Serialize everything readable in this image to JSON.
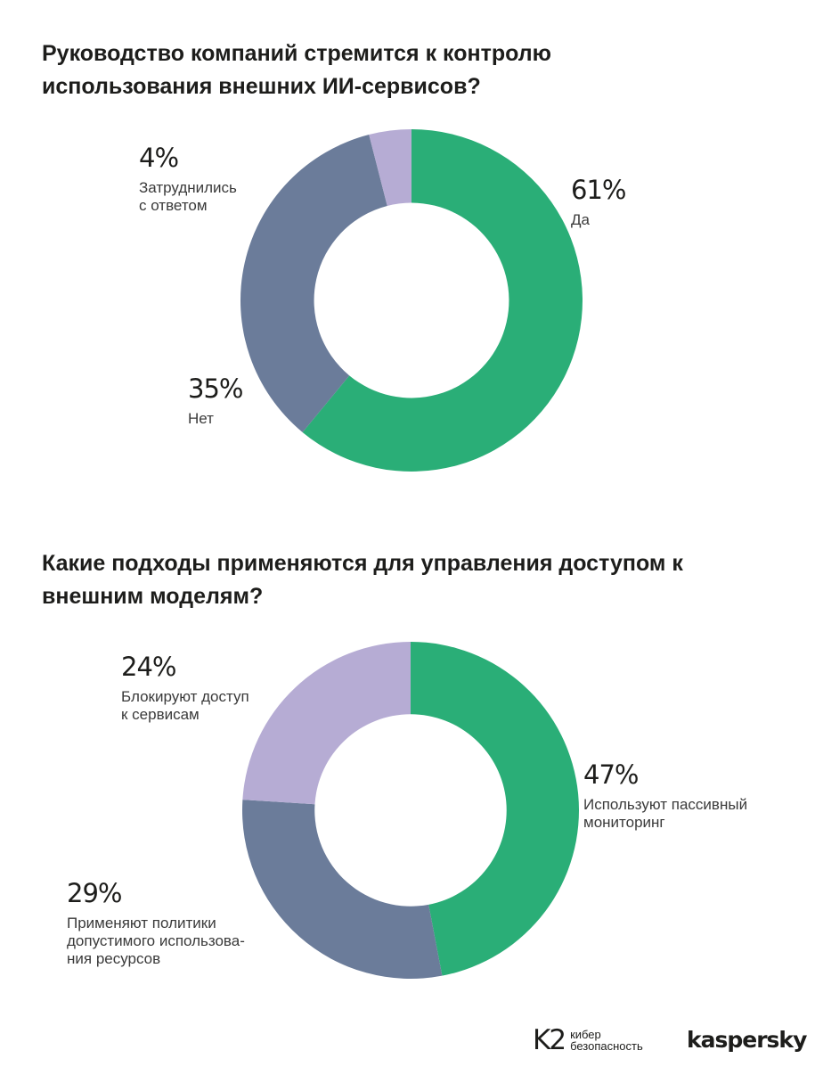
{
  "colors": {
    "green": "#2aae77",
    "slate": "#6b7c9a",
    "lavender": "#b6acd4"
  },
  "chart_data": [
    {
      "type": "pie",
      "style": "donut",
      "title": "Руководство компаний стремится к контролю использования внешних ИИ-сервисов?",
      "slices": [
        {
          "label": "Да",
          "value": 61,
          "display": "61%",
          "color": "#2aae77"
        },
        {
          "label": "Нет",
          "value": 35,
          "display": "35%",
          "color": "#6b7c9a"
        },
        {
          "label": "Затруднились\nс ответом",
          "value": 4,
          "display": "4%",
          "color": "#b6acd4"
        }
      ]
    },
    {
      "type": "pie",
      "style": "donut",
      "title": "Какие подходы применяются для управления доступом к внешним моделям?",
      "slices": [
        {
          "label": "Используют пассивный\nмониторинг",
          "value": 47,
          "display": "47%",
          "color": "#2aae77"
        },
        {
          "label": "Применяют политики\nдопустимого использова-\nния ресурсов",
          "value": 29,
          "display": "29%",
          "color": "#6b7c9a"
        },
        {
          "label": "Блокируют доступ\nк сервисам",
          "value": 24,
          "display": "24%",
          "color": "#b6acd4"
        }
      ]
    }
  ],
  "footer": {
    "k2_mark": "K2",
    "k2_text": "кибер\nбезопасность",
    "kaspersky": "kaspersky"
  }
}
